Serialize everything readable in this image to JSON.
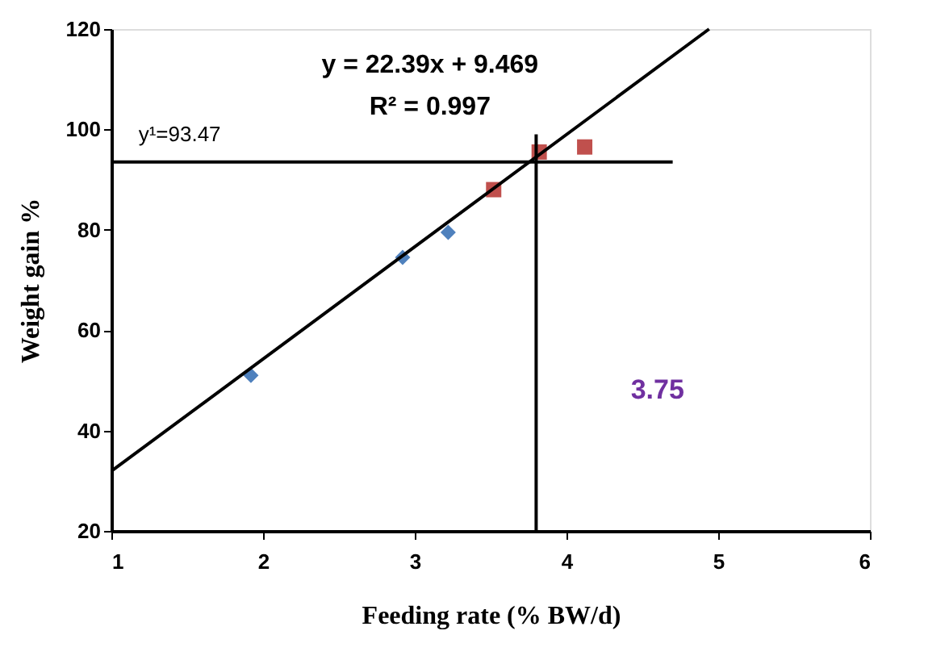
{
  "chart_data": {
    "type": "scatter",
    "xlabel": "Feeding rate (% BW/d)",
    "ylabel": "Weight gain %",
    "xlim": [
      1,
      6
    ],
    "ylim": [
      20,
      120
    ],
    "xticks": [
      1,
      2,
      3,
      4,
      5,
      6
    ],
    "yticks": [
      20,
      40,
      60,
      80,
      100,
      120
    ],
    "grid": false,
    "series": [
      {
        "marker": "diamond",
        "color": "#4f81bd",
        "x": [
          1.92,
          2.92,
          3.22
        ],
        "values": [
          51,
          74.5,
          79.5
        ]
      },
      {
        "marker": "square",
        "color": "#c0504d",
        "x": [
          3.52,
          3.82,
          4.12
        ],
        "values": [
          88,
          95.5,
          96.5
        ]
      },
      {
        "type": "line",
        "color": "#000000",
        "x": [
          1,
          4.94
        ],
        "values": [
          31.9,
          120
        ]
      },
      {
        "type": "line",
        "color": "#000000",
        "x": [
          1,
          4.7
        ],
        "values": [
          93.5,
          93.5
        ]
      },
      {
        "type": "line",
        "color": "#000000",
        "x": [
          3.8,
          3.8
        ],
        "values": [
          99,
          20
        ]
      }
    ],
    "annotations": [
      "y = 22.39x + 9.469",
      "R² = 0.997",
      "y¹=93.47",
      "3.75"
    ]
  }
}
